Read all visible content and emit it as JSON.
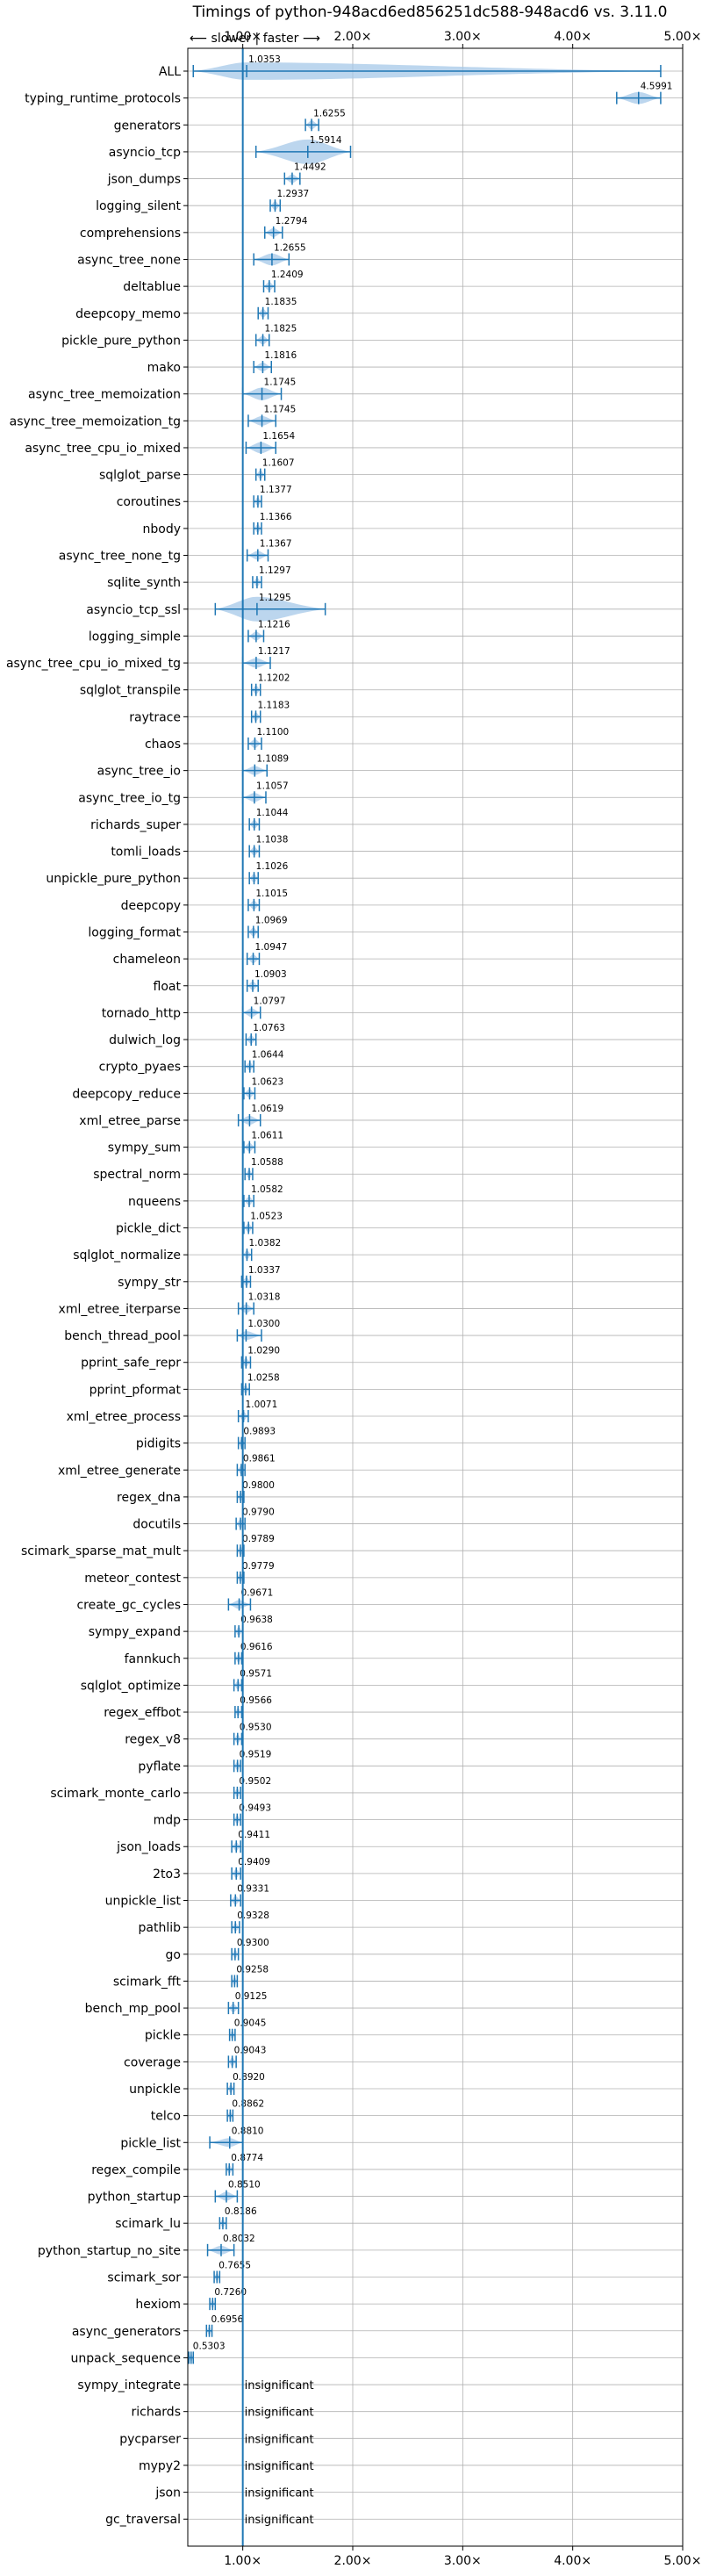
{
  "chart_data": {
    "type": "violin",
    "title": "Timings of python-948acd6ed856251dc588-948acd6 vs. 3.11.0",
    "direction_note": "⟵ slower | faster ⟶",
    "x_scale": "linear",
    "xlim": [
      0.5,
      5.0
    ],
    "x_ticks": [
      1,
      2,
      3,
      4,
      5
    ],
    "x_tick_labels": [
      "1.00×",
      "2.00×",
      "3.00×",
      "4.00×",
      "5.00×"
    ],
    "reference_line": 1.0,
    "grid": true,
    "insignificant_label": "insignificant",
    "colors": {
      "violin": "#a6c8e8",
      "line": "#1f77b4",
      "median": "#d62728",
      "grid": "#b0b0b0"
    },
    "benchmarks": [
      {
        "name": "ALL",
        "value": 1.0353,
        "spread_low": 0.55,
        "spread_high": 4.8,
        "body_half": 0.22
      },
      {
        "name": "typing_runtime_protocols",
        "value": 4.5991,
        "spread_low": 4.4,
        "spread_high": 4.8,
        "body_half": 0.15
      },
      {
        "name": "generators",
        "value": 1.6255,
        "spread_low": 1.57,
        "spread_high": 1.69,
        "body_half": 0.06
      },
      {
        "name": "asyncio_tcp",
        "value": 1.5914,
        "spread_low": 1.12,
        "spread_high": 1.98,
        "body_half": 0.35
      },
      {
        "name": "json_dumps",
        "value": 1.4492,
        "spread_low": 1.38,
        "spread_high": 1.52,
        "body_half": 0.06
      },
      {
        "name": "logging_silent",
        "value": 1.2937,
        "spread_low": 1.25,
        "spread_high": 1.34,
        "body_half": 0.04
      },
      {
        "name": "comprehensions",
        "value": 1.2794,
        "spread_low": 1.2,
        "spread_high": 1.36,
        "body_half": 0.06
      },
      {
        "name": "async_tree_none",
        "value": 1.2655,
        "spread_low": 1.1,
        "spread_high": 1.42,
        "body_half": 0.15
      },
      {
        "name": "deltablue",
        "value": 1.2409,
        "spread_low": 1.19,
        "spread_high": 1.29,
        "body_half": 0.04
      },
      {
        "name": "deepcopy_memo",
        "value": 1.1835,
        "spread_low": 1.14,
        "spread_high": 1.23,
        "body_half": 0.04
      },
      {
        "name": "pickle_pure_python",
        "value": 1.1825,
        "spread_low": 1.12,
        "spread_high": 1.24,
        "body_half": 0.05
      },
      {
        "name": "mako",
        "value": 1.1816,
        "spread_low": 1.1,
        "spread_high": 1.26,
        "body_half": 0.07
      },
      {
        "name": "async_tree_memoization",
        "value": 1.1745,
        "spread_low": 1.0,
        "spread_high": 1.35,
        "body_half": 0.16
      },
      {
        "name": "async_tree_memoization_tg",
        "value": 1.1745,
        "spread_low": 1.05,
        "spread_high": 1.3,
        "body_half": 0.12
      },
      {
        "name": "async_tree_cpu_io_mixed",
        "value": 1.1654,
        "spread_low": 1.03,
        "spread_high": 1.3,
        "body_half": 0.14
      },
      {
        "name": "sqlglot_parse",
        "value": 1.1607,
        "spread_low": 1.12,
        "spread_high": 1.2,
        "body_half": 0.04
      },
      {
        "name": "coroutines",
        "value": 1.1377,
        "spread_low": 1.1,
        "spread_high": 1.17,
        "body_half": 0.03
      },
      {
        "name": "nbody",
        "value": 1.1366,
        "spread_low": 1.1,
        "spread_high": 1.17,
        "body_half": 0.03
      },
      {
        "name": "async_tree_none_tg",
        "value": 1.1367,
        "spread_low": 1.04,
        "spread_high": 1.23,
        "body_half": 0.09
      },
      {
        "name": "sqlite_synth",
        "value": 1.1297,
        "spread_low": 1.09,
        "spread_high": 1.17,
        "body_half": 0.03
      },
      {
        "name": "asyncio_tcp_ssl",
        "value": 1.1295,
        "spread_low": 0.75,
        "spread_high": 1.75,
        "body_half": 0.38
      },
      {
        "name": "logging_simple",
        "value": 1.1216,
        "spread_low": 1.05,
        "spread_high": 1.19,
        "body_half": 0.07
      },
      {
        "name": "async_tree_cpu_io_mixed_tg",
        "value": 1.1217,
        "spread_low": 1.0,
        "spread_high": 1.25,
        "body_half": 0.12
      },
      {
        "name": "sqlglot_transpile",
        "value": 1.1202,
        "spread_low": 1.08,
        "spread_high": 1.16,
        "body_half": 0.03
      },
      {
        "name": "raytrace",
        "value": 1.1183,
        "spread_low": 1.08,
        "spread_high": 1.16,
        "body_half": 0.03
      },
      {
        "name": "chaos",
        "value": 1.11,
        "spread_low": 1.05,
        "spread_high": 1.17,
        "body_half": 0.05
      },
      {
        "name": "async_tree_io",
        "value": 1.1089,
        "spread_low": 1.0,
        "spread_high": 1.22,
        "body_half": 0.1
      },
      {
        "name": "async_tree_io_tg",
        "value": 1.1057,
        "spread_low": 1.0,
        "spread_high": 1.21,
        "body_half": 0.1
      },
      {
        "name": "richards_super",
        "value": 1.1044,
        "spread_low": 1.06,
        "spread_high": 1.15,
        "body_half": 0.04
      },
      {
        "name": "tomli_loads",
        "value": 1.1038,
        "spread_low": 1.06,
        "spread_high": 1.15,
        "body_half": 0.04
      },
      {
        "name": "unpickle_pure_python",
        "value": 1.1026,
        "spread_low": 1.06,
        "spread_high": 1.14,
        "body_half": 0.03
      },
      {
        "name": "deepcopy",
        "value": 1.1015,
        "spread_low": 1.05,
        "spread_high": 1.15,
        "body_half": 0.04
      },
      {
        "name": "logging_format",
        "value": 1.0969,
        "spread_low": 1.05,
        "spread_high": 1.14,
        "body_half": 0.04
      },
      {
        "name": "chameleon",
        "value": 1.0947,
        "spread_low": 1.04,
        "spread_high": 1.15,
        "body_half": 0.05
      },
      {
        "name": "float",
        "value": 1.0903,
        "spread_low": 1.04,
        "spread_high": 1.14,
        "body_half": 0.04
      },
      {
        "name": "tornado_http",
        "value": 1.0797,
        "spread_low": 1.0,
        "spread_high": 1.16,
        "body_half": 0.07
      },
      {
        "name": "dulwich_log",
        "value": 1.0763,
        "spread_low": 1.03,
        "spread_high": 1.12,
        "body_half": 0.04
      },
      {
        "name": "crypto_pyaes",
        "value": 1.0644,
        "spread_low": 1.02,
        "spread_high": 1.1,
        "body_half": 0.03
      },
      {
        "name": "deepcopy_reduce",
        "value": 1.0623,
        "spread_low": 1.01,
        "spread_high": 1.11,
        "body_half": 0.04
      },
      {
        "name": "xml_etree_parse",
        "value": 1.0619,
        "spread_low": 0.96,
        "spread_high": 1.16,
        "body_half": 0.07
      },
      {
        "name": "sympy_sum",
        "value": 1.0611,
        "spread_low": 1.01,
        "spread_high": 1.11,
        "body_half": 0.04
      },
      {
        "name": "spectral_norm",
        "value": 1.0588,
        "spread_low": 1.02,
        "spread_high": 1.09,
        "body_half": 0.03
      },
      {
        "name": "nqueens",
        "value": 1.0582,
        "spread_low": 1.01,
        "spread_high": 1.1,
        "body_half": 0.04
      },
      {
        "name": "pickle_dict",
        "value": 1.0523,
        "spread_low": 1.01,
        "spread_high": 1.09,
        "body_half": 0.03
      },
      {
        "name": "sqlglot_normalize",
        "value": 1.0382,
        "spread_low": 1.0,
        "spread_high": 1.08,
        "body_half": 0.03
      },
      {
        "name": "sympy_str",
        "value": 1.0337,
        "spread_low": 0.99,
        "spread_high": 1.07,
        "body_half": 0.03
      },
      {
        "name": "xml_etree_iterparse",
        "value": 1.0318,
        "spread_low": 0.96,
        "spread_high": 1.1,
        "body_half": 0.06
      },
      {
        "name": "bench_thread_pool",
        "value": 1.03,
        "spread_low": 0.95,
        "spread_high": 1.17,
        "body_half": 0.04
      },
      {
        "name": "pprint_safe_repr",
        "value": 1.029,
        "spread_low": 0.99,
        "spread_high": 1.07,
        "body_half": 0.03
      },
      {
        "name": "pprint_pformat",
        "value": 1.0258,
        "spread_low": 0.99,
        "spread_high": 1.06,
        "body_half": 0.03
      },
      {
        "name": "xml_etree_process",
        "value": 1.0071,
        "spread_low": 0.96,
        "spread_high": 1.05,
        "body_half": 0.04
      },
      {
        "name": "pidigits",
        "value": 0.9893,
        "spread_low": 0.96,
        "spread_high": 1.02,
        "body_half": 0.02
      },
      {
        "name": "xml_etree_generate",
        "value": 0.9861,
        "spread_low": 0.95,
        "spread_high": 1.02,
        "body_half": 0.03
      },
      {
        "name": "regex_dna",
        "value": 0.98,
        "spread_low": 0.95,
        "spread_high": 1.01,
        "body_half": 0.02
      },
      {
        "name": "docutils",
        "value": 0.979,
        "spread_low": 0.94,
        "spread_high": 1.02,
        "body_half": 0.03
      },
      {
        "name": "scimark_sparse_mat_mult",
        "value": 0.9789,
        "spread_low": 0.95,
        "spread_high": 1.01,
        "body_half": 0.02
      },
      {
        "name": "meteor_contest",
        "value": 0.9779,
        "spread_low": 0.95,
        "spread_high": 1.01,
        "body_half": 0.02
      },
      {
        "name": "create_gc_cycles",
        "value": 0.9671,
        "spread_low": 0.87,
        "spread_high": 1.07,
        "body_half": 0.08
      },
      {
        "name": "sympy_expand",
        "value": 0.9638,
        "spread_low": 0.93,
        "spread_high": 1.0,
        "body_half": 0.03
      },
      {
        "name": "fannkuch",
        "value": 0.9616,
        "spread_low": 0.93,
        "spread_high": 0.99,
        "body_half": 0.02
      },
      {
        "name": "sqlglot_optimize",
        "value": 0.9571,
        "spread_low": 0.92,
        "spread_high": 0.99,
        "body_half": 0.03
      },
      {
        "name": "regex_effbot",
        "value": 0.9566,
        "spread_low": 0.93,
        "spread_high": 0.99,
        "body_half": 0.02
      },
      {
        "name": "regex_v8",
        "value": 0.953,
        "spread_low": 0.92,
        "spread_high": 0.99,
        "body_half": 0.03
      },
      {
        "name": "pyflate",
        "value": 0.9519,
        "spread_low": 0.92,
        "spread_high": 0.98,
        "body_half": 0.02
      },
      {
        "name": "scimark_monte_carlo",
        "value": 0.9502,
        "spread_low": 0.92,
        "spread_high": 0.98,
        "body_half": 0.02
      },
      {
        "name": "mdp",
        "value": 0.9493,
        "spread_low": 0.92,
        "spread_high": 0.98,
        "body_half": 0.02
      },
      {
        "name": "json_loads",
        "value": 0.9411,
        "spread_low": 0.9,
        "spread_high": 0.98,
        "body_half": 0.03
      },
      {
        "name": "2to3",
        "value": 0.9409,
        "spread_low": 0.9,
        "spread_high": 0.98,
        "body_half": 0.03
      },
      {
        "name": "unpickle_list",
        "value": 0.9331,
        "spread_low": 0.89,
        "spread_high": 0.98,
        "body_half": 0.04
      },
      {
        "name": "pathlib",
        "value": 0.9328,
        "spread_low": 0.9,
        "spread_high": 0.97,
        "body_half": 0.03
      },
      {
        "name": "go",
        "value": 0.93,
        "spread_low": 0.9,
        "spread_high": 0.96,
        "body_half": 0.02
      },
      {
        "name": "scimark_fft",
        "value": 0.9258,
        "spread_low": 0.9,
        "spread_high": 0.95,
        "body_half": 0.02
      },
      {
        "name": "bench_mp_pool",
        "value": 0.9125,
        "spread_low": 0.87,
        "spread_high": 0.96,
        "body_half": 0.04
      },
      {
        "name": "pickle",
        "value": 0.9045,
        "spread_low": 0.88,
        "spread_high": 0.93,
        "body_half": 0.02
      },
      {
        "name": "coverage",
        "value": 0.9043,
        "spread_low": 0.87,
        "spread_high": 0.94,
        "body_half": 0.03
      },
      {
        "name": "unpickle",
        "value": 0.892,
        "spread_low": 0.86,
        "spread_high": 0.92,
        "body_half": 0.03
      },
      {
        "name": "telco",
        "value": 0.8862,
        "spread_low": 0.86,
        "spread_high": 0.91,
        "body_half": 0.02
      },
      {
        "name": "pickle_list",
        "value": 0.881,
        "spread_low": 0.7,
        "spread_high": 1.0,
        "body_half": 0.07
      },
      {
        "name": "regex_compile",
        "value": 0.8774,
        "spread_low": 0.85,
        "spread_high": 0.91,
        "body_half": 0.02
      },
      {
        "name": "python_startup",
        "value": 0.851,
        "spread_low": 0.75,
        "spread_high": 0.95,
        "body_half": 0.08
      },
      {
        "name": "scimark_lu",
        "value": 0.8186,
        "spread_low": 0.79,
        "spread_high": 0.85,
        "body_half": 0.02
      },
      {
        "name": "python_startup_no_site",
        "value": 0.8032,
        "spread_low": 0.68,
        "spread_high": 0.92,
        "body_half": 0.08
      },
      {
        "name": "scimark_sor",
        "value": 0.7655,
        "spread_low": 0.74,
        "spread_high": 0.79,
        "body_half": 0.02
      },
      {
        "name": "hexiom",
        "value": 0.726,
        "spread_low": 0.7,
        "spread_high": 0.75,
        "body_half": 0.02
      },
      {
        "name": "async_generators",
        "value": 0.6956,
        "spread_low": 0.67,
        "spread_high": 0.72,
        "body_half": 0.02
      },
      {
        "name": "unpack_sequence",
        "value": 0.5303,
        "spread_low": 0.51,
        "spread_high": 0.55,
        "body_half": 0.02
      },
      {
        "name": "sympy_integrate",
        "value": null
      },
      {
        "name": "richards",
        "value": null
      },
      {
        "name": "pycparser",
        "value": null
      },
      {
        "name": "mypy2",
        "value": null
      },
      {
        "name": "json",
        "value": null
      },
      {
        "name": "gc_traversal",
        "value": null
      }
    ]
  }
}
